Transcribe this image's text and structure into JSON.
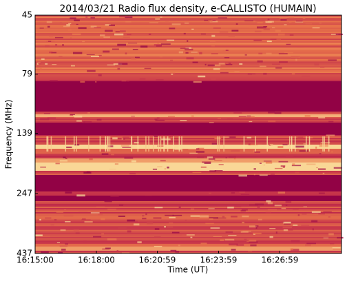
{
  "chart_data": {
    "type": "spectrogram",
    "title": "2014/03/21  Radio flux density, e-CALLISTO (HUMAIN)",
    "xlabel": "Time (UT)",
    "ylabel": "Frequency (MHz)",
    "xlim": [
      "16:15:00",
      "16:30:00"
    ],
    "xticks": [
      "16:15:00",
      "16:18:00",
      "16:20:59",
      "16:23:59",
      "16:26:59"
    ],
    "ylim": [
      45,
      437
    ],
    "yticks": [
      45,
      79,
      139,
      247,
      437
    ],
    "ylog": true,
    "yinverted": true
  }
}
